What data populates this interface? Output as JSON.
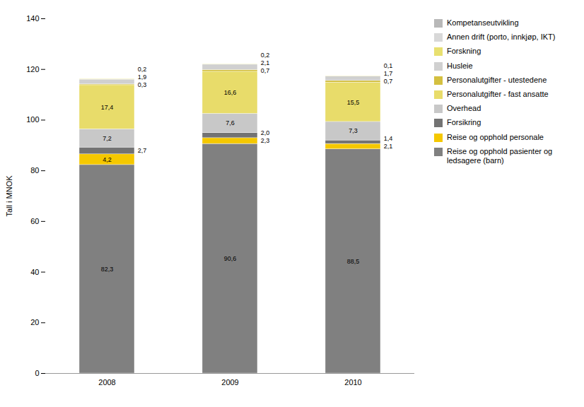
{
  "chart_data": {
    "type": "bar",
    "stacked": true,
    "categories": [
      "2008",
      "2009",
      "2010"
    ],
    "series": [
      {
        "name": "Reise og opphold pasienter og\nledsagere (barn)",
        "color": "#808080",
        "values": [
          82.3,
          90.6,
          88.5
        ],
        "value_labels": [
          "82,3",
          "90,6",
          "88,5"
        ]
      },
      {
        "name": "Reise og opphold personale",
        "color": "#f5c800",
        "values": [
          4.2,
          2.3,
          2.1
        ],
        "value_labels": [
          "4,2",
          "2,3",
          "2,1"
        ]
      },
      {
        "name": "Forsikring",
        "color": "#737373",
        "values": [
          2.7,
          2.0,
          1.4
        ],
        "value_labels": [
          "2,7",
          "2,0",
          "1,4"
        ]
      },
      {
        "name": "Overhead",
        "color": "#c8c8c8",
        "values": [
          7.2,
          7.6,
          7.3
        ],
        "value_labels": [
          "7,2",
          "7,6",
          "7,3"
        ]
      },
      {
        "name": "Personalutgifter - fast ansatte",
        "color": "#e8dc6a",
        "values": [
          17.4,
          16.6,
          15.5
        ],
        "value_labels": [
          "17,4",
          "16,6",
          "15,5"
        ]
      },
      {
        "name": "Personalutgifter - utestedene",
        "color": "#d4c040",
        "values": [
          0.3,
          0.7,
          0.7
        ],
        "value_labels": [
          "0,3",
          "0,7",
          "0,7"
        ]
      },
      {
        "name": "Husleie",
        "color": "#d0d0d0",
        "values": [
          1.9,
          2.1,
          1.7
        ],
        "value_labels": [
          "1,9",
          "2,1",
          "1,7"
        ]
      },
      {
        "name": "Forskning",
        "color": "#e8e070",
        "values": [
          0.2,
          0.2,
          0.1
        ],
        "value_labels": [
          "0,2",
          "0,2",
          "0,1"
        ]
      },
      {
        "name": "Annen drift (porto, innkjøp, IKT)",
        "color": "#d8d8d8",
        "values": [
          0.0,
          0.0,
          0.0
        ]
      },
      {
        "name": "Kompetanseutvikling",
        "color": "#b8b8b8",
        "values": [
          0.0,
          0.0,
          0.0
        ]
      }
    ],
    "ylabel": "Tall i MNOK",
    "ylim": [
      0,
      140
    ],
    "yticks": [
      0,
      20,
      40,
      60,
      80,
      100,
      120,
      140
    ],
    "data_labels": true,
    "grid": false,
    "legend": "right"
  }
}
